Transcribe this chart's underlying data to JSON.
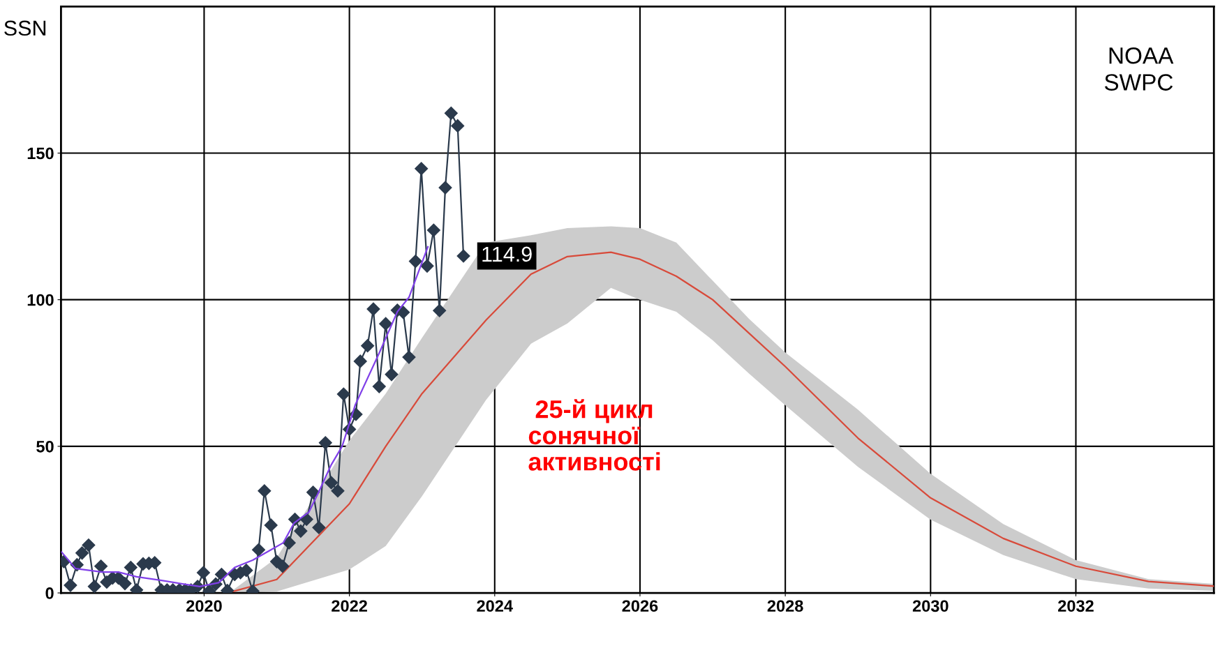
{
  "chart_data": {
    "type": "line",
    "ylabel": "SSN",
    "xlim": [
      2018.03,
      2033.9
    ],
    "ylim": [
      0,
      200
    ],
    "xticks": [
      2020,
      2022,
      2024,
      2026,
      2028,
      2030,
      2032
    ],
    "yticks": [
      0,
      50,
      100,
      150
    ],
    "grid": true,
    "legend": false,
    "annotations": [
      {
        "text": "114.9",
        "x": 2023.57,
        "y": 114.9
      },
      " 25-й цикл\nсонячної\nактивності",
      "NOAA\nSWPC"
    ],
    "series": [
      {
        "color": "#2b3a4c",
        "marker": "diamond",
        "x": [
          2018.07,
          2018.16,
          2018.25,
          2018.32,
          2018.41,
          2018.49,
          2018.58,
          2018.66,
          2018.74,
          2018.82,
          2018.91,
          2018.99,
          2019.07,
          2019.16,
          2019.24,
          2019.32,
          2019.41,
          2019.49,
          2019.57,
          2019.66,
          2019.74,
          2019.82,
          2019.91,
          2019.99,
          2020.07,
          2020.16,
          2020.24,
          2020.32,
          2020.42,
          2020.5,
          2020.58,
          2020.67,
          2020.75,
          2020.83,
          2020.92,
          2021.0,
          2021.08,
          2021.17,
          2021.25,
          2021.33,
          2021.41,
          2021.5,
          2021.58,
          2021.67,
          2021.75,
          2021.84,
          2021.92,
          2022.0,
          2022.09,
          2022.15,
          2022.25,
          2022.33,
          2022.41,
          2022.5,
          2022.58,
          2022.66,
          2022.74,
          2022.82,
          2022.91,
          2022.99,
          2023.07,
          2023.16,
          2023.24,
          2023.32,
          2023.4,
          2023.49,
          2023.57
        ],
        "values": [
          10.7,
          2.6,
          9.6,
          13.6,
          16.3,
          2.2,
          9.1,
          3.7,
          5.1,
          5.1,
          3.2,
          8.7,
          1.0,
          9.9,
          10.1,
          10.3,
          1.0,
          1.0,
          1.0,
          1.0,
          1.0,
          1.0,
          2.2,
          6.9,
          0.6,
          3.0,
          6.3,
          0.8,
          6.3,
          6.9,
          7.7,
          0.6,
          14.7,
          34.8,
          23.1,
          10.7,
          9.1,
          17.1,
          25.1,
          21.1,
          25.1,
          34.3,
          22.3,
          51.2,
          37.6,
          34.8,
          67.8,
          55.8,
          60.9,
          79.0,
          84.3,
          96.8,
          70.4,
          91.8,
          74.5,
          96.4,
          95.7,
          80.4,
          113.1,
          144.7,
          111.5,
          123.7,
          96.3,
          138.2,
          163.6,
          159.3,
          114.9
        ]
      },
      {
        "color": "#8040e8",
        "marker": "none",
        "x": [
          2018.04,
          2018.23,
          2018.6,
          2018.82,
          2019.07,
          2019.4,
          2019.72,
          2019.94,
          2020.2,
          2020.42,
          2020.67,
          2020.89,
          2021.09,
          2021.24,
          2021.44,
          2021.56,
          2021.75,
          2021.9,
          2022.08,
          2022.41,
          2022.66,
          2022.82,
          2022.91,
          2023.08
        ],
        "values": [
          13.9,
          8.3,
          7.1,
          7.1,
          5.5,
          4.3,
          3.0,
          2.2,
          3.5,
          8.7,
          11.2,
          14.3,
          17.1,
          23.9,
          27.5,
          33.5,
          43.7,
          50.0,
          64.1,
          81.8,
          95.9,
          100.8,
          106.8,
          118.0
        ]
      },
      {
        "color": "#d84a3a",
        "marker": "none",
        "x": [
          2020.4,
          2021,
          2022,
          2022.5,
          2023,
          2023.88,
          2024.5,
          2025,
          2025.6,
          2026,
          2026.5,
          2027,
          2027.5,
          2028,
          2029,
          2030,
          2031,
          2032,
          2033,
          2033.9
        ],
        "values": [
          0.5,
          4.6,
          30.4,
          50,
          68,
          93,
          108.7,
          114.7,
          116.2,
          113.8,
          108,
          100,
          88.6,
          77.2,
          52.8,
          32.4,
          18.6,
          9.1,
          3.9,
          2.3
        ],
        "lower": [
          0,
          0.5,
          8,
          16,
          33,
          65.8,
          85,
          91.9,
          104,
          100,
          95.9,
          86.2,
          74.8,
          64,
          43,
          25,
          12.9,
          4.7,
          1.5,
          0.7
        ],
        "upper": [
          1,
          12,
          52,
          68,
          87,
          119.5,
          122,
          124.4,
          125,
          124.4,
          119.5,
          106.5,
          93.5,
          82,
          62.5,
          40.6,
          23.5,
          11.2,
          4.7,
          3.1
        ]
      }
    ]
  }
}
